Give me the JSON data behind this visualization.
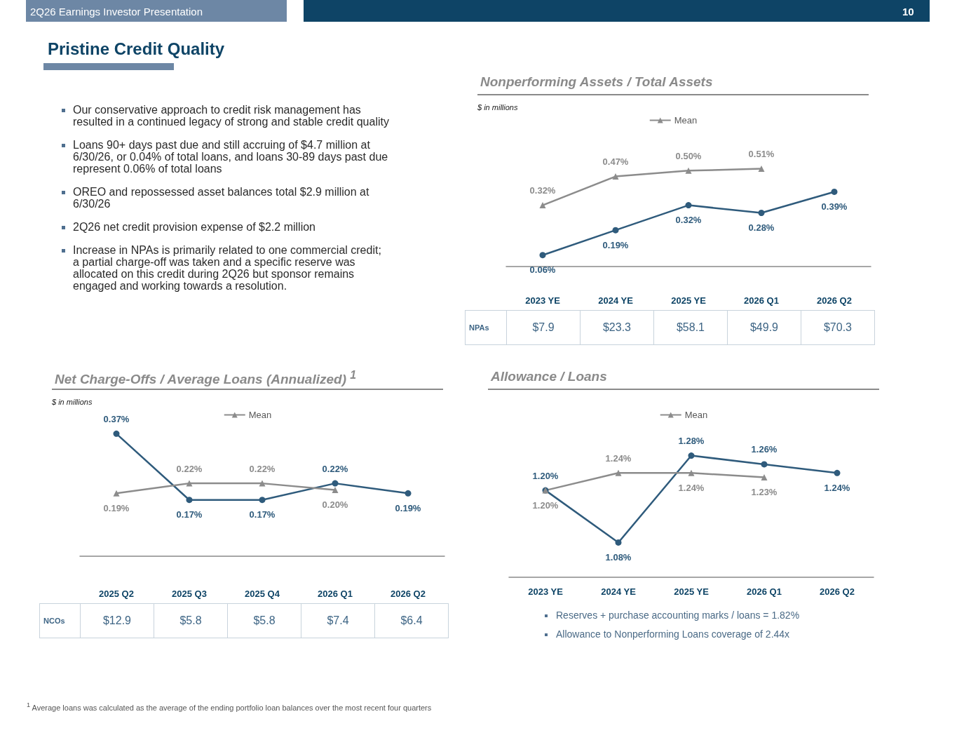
{
  "chart_data": [
    {
      "type": "other",
      "title": "Pristine Credit Quality",
      "annotations": [
        "2Q26 Earnings Investor Presentation",
        "10",
        "Our conservative approach to credit risk management has resulted in a continued legacy of strong and stable credit quality",
        "Loans 90+ days past due and still accruing of $4.7 million at 6/30/26, or 0.04% of total loans, and loans 30-89 days past due represent 0.06% of total loans",
        "OREO and repossessed asset balances total $2.9 million at 6/30/26",
        "2Q26 net credit provision expense of $2.2 million",
        "Increase in NPAs is primarily related to one commercial credit; a partial charge-off was taken and a specific reserve was allocated on this credit during 2Q26 but sponsor remains engaged and working towards a resolution."
      ]
    },
    {
      "type": "line",
      "title": "Nonperforming Assets / Total Assets",
      "categories": [
        "2023 YE",
        "2024 YE",
        "2025 YE",
        "2026 Q1",
        "2026 Q2"
      ],
      "series": [
        {
          "color": "#2f5b7c",
          "marker": "circle",
          "values": [
            0.06,
            0.19,
            0.32,
            0.28,
            0.39
          ],
          "value_labels": [
            "0.06%",
            "0.19%",
            "0.32%",
            "0.28%",
            "0.39%"
          ]
        },
        {
          "name": "Mean",
          "color": "#8c8c8c",
          "marker": "triangle",
          "values": [
            0.32,
            0.47,
            0.5,
            0.51,
            null
          ],
          "value_labels": [
            "0.32%",
            "0.47%",
            "0.50%",
            "0.51%",
            null
          ]
        }
      ],
      "tick_labels": "x",
      "grid": false,
      "legend": "top",
      "annotations": [
        "$ in millions",
        "NPAs",
        "$7.9",
        "$23.3",
        "$58.1",
        "$49.9",
        "$70.3"
      ]
    },
    {
      "type": "line",
      "title": "Net Charge-Offs / Average Loans (Annualized) $^{1}$",
      "categories": [
        "2025 Q2",
        "2025 Q3",
        "2025 Q4",
        "2026 Q1",
        "2026 Q2"
      ],
      "series": [
        {
          "color": "#2f5b7c",
          "marker": "circle",
          "values": [
            0.37,
            0.17,
            0.17,
            0.22,
            0.19
          ],
          "value_labels": [
            "0.37%",
            "0.17%",
            "0.17%",
            "0.22%",
            "0.19%"
          ]
        },
        {
          "name": "Mean",
          "color": "#8c8c8c",
          "marker": "triangle",
          "values": [
            0.19,
            0.22,
            0.22,
            0.2,
            null
          ],
          "value_labels": [
            "0.19%",
            "0.22%",
            "0.22%",
            "0.20%",
            null
          ]
        }
      ],
      "tick_labels": "x",
      "grid": false,
      "legend": "top",
      "annotations": [
        "$ in millions",
        "NCOs",
        "$12.9",
        "$5.8",
        "$5.8",
        "$7.4",
        "$6.4",
        "$^{1}$ Average loans was calculated as the average of the ending portfolio loan balances over the most recent four quarters"
      ]
    },
    {
      "type": "line",
      "title": "Allowance / Loans",
      "categories": [
        "2023 YE",
        "2024 YE",
        "2025 YE",
        "2026 Q1",
        "2026 Q2"
      ],
      "series": [
        {
          "color": "#2f5b7c",
          "marker": "circle",
          "values": [
            1.2,
            1.08,
            1.28,
            1.26,
            1.24
          ],
          "value_labels": [
            "1.20%",
            "1.08%",
            "1.28%",
            "1.26%",
            "1.24%"
          ]
        },
        {
          "name": "Mean",
          "color": "#8c8c8c",
          "marker": "triangle",
          "values": [
            1.2,
            1.24,
            1.24,
            1.23,
            null
          ],
          "value_labels": [
            "1.20%",
            "1.24%",
            "1.24%",
            "1.23%",
            null
          ]
        }
      ],
      "tick_labels": "x",
      "grid": false,
      "legend": "top",
      "annotations": [
        "Reserves + purchase accounting marks / loans = 1.82%",
        "Allowance to Nonperforming Loans coverage of 2.44x"
      ]
    }
  ]
}
